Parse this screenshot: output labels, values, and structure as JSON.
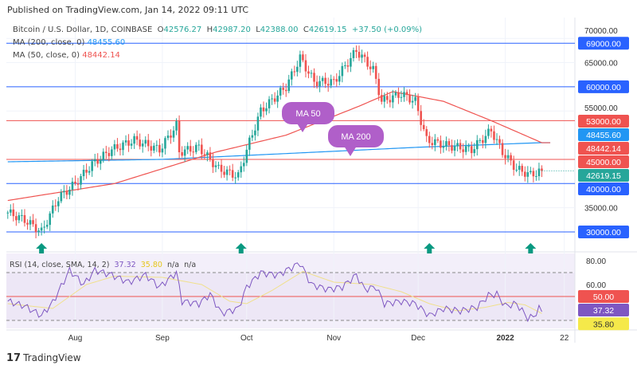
{
  "header": {
    "published": "Published on TradingView.com, Jan 14, 2022 09:11 UTC"
  },
  "legend": {
    "symbol": "Bitcoin / U.S. Dollar, 1D, COINBASE",
    "o_label": "O",
    "o": "42576.27",
    "h_label": "H",
    "h": "42987.20",
    "l_label": "L",
    "l": "42388.00",
    "c_label": "C",
    "c": "42619.15",
    "change": "+37.50 (+0.09%)",
    "ma200_label": "MA (200, close, 0)",
    "ma200": "48455.60",
    "ma50_label": "MA (50, close, 0)",
    "ma50": "48442.14"
  },
  "rsi_legend": {
    "label": "RSI (14, close, SMA, 14, 2)",
    "rsi": "37.32",
    "sma": "35.80",
    "na1": "n/a",
    "na2": "n/a"
  },
  "annotations": {
    "ma50": "MA 50",
    "ma200": "MA 200"
  },
  "footer": {
    "logo": "TradingView",
    "logo_mark": "17"
  },
  "colors": {
    "up": "#26a69a",
    "down": "#ef5350",
    "blue": "#2962ff",
    "ma200": "#2196f3",
    "ma50": "#ef5350",
    "rsi": "#7e57c2",
    "rsi_sma": "#f0e08c",
    "bubble": "#b05fc9"
  },
  "chart_data": {
    "type": "candlestick",
    "title": "Bitcoin / U.S. Dollar, 1D, COINBASE",
    "ylim": [
      28000,
      72000
    ],
    "y_ticks": [
      35000,
      55000,
      65000,
      70000
    ],
    "x_ticks": [
      {
        "label": "Aug",
        "date": "2021-08-01"
      },
      {
        "label": "Sep",
        "date": "2021-09-01"
      },
      {
        "label": "Oct",
        "date": "2021-10-01"
      },
      {
        "label": "Nov",
        "date": "2021-11-01"
      },
      {
        "label": "Dec",
        "date": "2021-12-01"
      },
      {
        "label": "2022",
        "date": "2022-01-01"
      },
      {
        "label": "22",
        "date": "2022-01-22"
      }
    ],
    "close_keypoints": [
      [
        "2021-07-08",
        34000
      ],
      [
        "2021-07-14",
        32500
      ],
      [
        "2021-07-20",
        30000
      ],
      [
        "2021-07-26",
        37000
      ],
      [
        "2021-08-01",
        40000
      ],
      [
        "2021-08-07",
        44000
      ],
      [
        "2021-08-14",
        47000
      ],
      [
        "2021-08-22",
        49000
      ],
      [
        "2021-08-31",
        47000
      ],
      [
        "2021-09-06",
        52000
      ],
      [
        "2021-09-07",
        46500
      ],
      [
        "2021-09-14",
        47500
      ],
      [
        "2021-09-21",
        43000
      ],
      [
        "2021-09-28",
        41500
      ],
      [
        "2021-10-01",
        47000
      ],
      [
        "2021-10-06",
        55000
      ],
      [
        "2021-10-15",
        60000
      ],
      [
        "2021-10-20",
        66000
      ],
      [
        "2021-10-25",
        61000
      ],
      [
        "2021-11-01",
        61000
      ],
      [
        "2021-11-09",
        67500
      ],
      [
        "2021-11-15",
        63500
      ],
      [
        "2021-11-18",
        57000
      ],
      [
        "2021-11-25",
        58500
      ],
      [
        "2021-11-30",
        57000
      ],
      [
        "2021-12-04",
        49000
      ],
      [
        "2021-12-10",
        48000
      ],
      [
        "2021-12-20",
        47000
      ],
      [
        "2021-12-27",
        51000
      ],
      [
        "2021-12-31",
        46500
      ],
      [
        "2022-01-05",
        43000
      ],
      [
        "2022-01-10",
        41800
      ],
      [
        "2022-01-14",
        42619.15
      ]
    ],
    "ma50_keypoints": [
      [
        "2021-07-08",
        36500
      ],
      [
        "2021-08-15",
        40000
      ],
      [
        "2021-09-20",
        46500
      ],
      [
        "2021-10-15",
        50000
      ],
      [
        "2021-11-10",
        56000
      ],
      [
        "2021-11-22",
        59000
      ],
      [
        "2021-12-10",
        57000
      ],
      [
        "2021-12-27",
        53000
      ],
      [
        "2022-01-14",
        48442.14
      ]
    ],
    "ma200_keypoints": [
      [
        "2021-07-08",
        44500
      ],
      [
        "2021-09-01",
        45000
      ],
      [
        "2021-10-15",
        46200
      ],
      [
        "2021-12-01",
        47500
      ],
      [
        "2022-01-14",
        48455.6
      ]
    ],
    "horizontal_levels": [
      {
        "value": 69000,
        "label": "69000.00",
        "color": "blue"
      },
      {
        "value": 60000,
        "label": "60000.00",
        "color": "blue"
      },
      {
        "value": 53000,
        "label": "53000.00",
        "color": "red"
      },
      {
        "value": 45000,
        "label": "45000.00",
        "color": "red"
      },
      {
        "value": 40000,
        "label": "40000.00",
        "color": "blue"
      },
      {
        "value": 30000,
        "label": "30000.00",
        "color": "blue"
      }
    ],
    "price_badges": [
      {
        "value": 48455.6,
        "label": "48455.60",
        "color": "ma200"
      },
      {
        "value": 48442.14,
        "label": "48442.14",
        "color": "ma50"
      },
      {
        "value": 42619.15,
        "label": "42619.15",
        "color": "up"
      }
    ],
    "up_arrows": [
      "2021-07-20",
      "2021-09-29",
      "2021-12-05",
      "2022-01-10"
    ],
    "rsi": {
      "ylim": [
        20,
        85
      ],
      "ticks": [
        {
          "v": 80,
          "label": "80.00"
        },
        {
          "v": 60,
          "label": "60.00"
        }
      ],
      "bands": [
        30,
        70
      ],
      "midline": {
        "v": 50,
        "label": "50.00"
      },
      "keypoints": [
        [
          "2021-07-08",
          46
        ],
        [
          "2021-07-14",
          42
        ],
        [
          "2021-07-20",
          34
        ],
        [
          "2021-07-24",
          45
        ],
        [
          "2021-07-30",
          72
        ],
        [
          "2021-08-04",
          60
        ],
        [
          "2021-08-08",
          72
        ],
        [
          "2021-08-14",
          68
        ],
        [
          "2021-08-20",
          62
        ],
        [
          "2021-08-26",
          68
        ],
        [
          "2021-08-31",
          58
        ],
        [
          "2021-09-06",
          70
        ],
        [
          "2021-09-08",
          46
        ],
        [
          "2021-09-14",
          44
        ],
        [
          "2021-09-18",
          52
        ],
        [
          "2021-09-22",
          36
        ],
        [
          "2021-09-28",
          40
        ],
        [
          "2021-10-01",
          58
        ],
        [
          "2021-10-06",
          70
        ],
        [
          "2021-10-12",
          68
        ],
        [
          "2021-10-20",
          78
        ],
        [
          "2021-10-24",
          60
        ],
        [
          "2021-10-30",
          56
        ],
        [
          "2021-11-04",
          58
        ],
        [
          "2021-11-09",
          68
        ],
        [
          "2021-11-12",
          56
        ],
        [
          "2021-11-16",
          58
        ],
        [
          "2021-11-19",
          44
        ],
        [
          "2021-11-25",
          46
        ],
        [
          "2021-11-30",
          44
        ],
        [
          "2021-12-05",
          34
        ],
        [
          "2021-12-10",
          40
        ],
        [
          "2021-12-16",
          38
        ],
        [
          "2021-12-22",
          41
        ],
        [
          "2021-12-26",
          51
        ],
        [
          "2021-12-29",
          52
        ],
        [
          "2022-01-01",
          42
        ],
        [
          "2022-01-05",
          44
        ],
        [
          "2022-01-09",
          32
        ],
        [
          "2022-01-11",
          33
        ],
        [
          "2022-01-13",
          40
        ],
        [
          "2022-01-14",
          37.32
        ]
      ],
      "sma_keypoints": [
        [
          "2021-07-08",
          44
        ],
        [
          "2021-07-24",
          40
        ],
        [
          "2021-08-05",
          60
        ],
        [
          "2021-08-15",
          67
        ],
        [
          "2021-09-01",
          66
        ],
        [
          "2021-09-15",
          60
        ],
        [
          "2021-09-25",
          46
        ],
        [
          "2021-10-01",
          44
        ],
        [
          "2021-10-10",
          55
        ],
        [
          "2021-10-21",
          71
        ],
        [
          "2021-11-01",
          62
        ],
        [
          "2021-11-15",
          60
        ],
        [
          "2021-11-25",
          54
        ],
        [
          "2021-12-05",
          44
        ],
        [
          "2021-12-15",
          38
        ],
        [
          "2021-12-25",
          41
        ],
        [
          "2022-01-02",
          45
        ],
        [
          "2022-01-08",
          43
        ],
        [
          "2022-01-14",
          35.8
        ]
      ],
      "badges": [
        {
          "v": 37.32,
          "label": "37.32",
          "color": "rsi"
        },
        {
          "v": 35.8,
          "label": "35.80",
          "color": "sma"
        }
      ]
    }
  }
}
